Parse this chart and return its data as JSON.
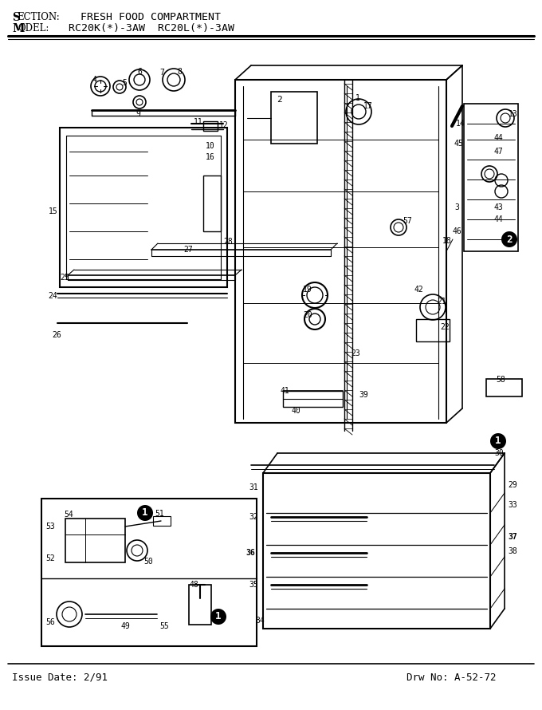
{
  "title_line1": "Section:  Fresh Food Compartment",
  "title_line2": "Model:   RC20K(*)-3AW  RC20L(*)-3AW",
  "title_section": "SECTION:  FRESH FOOD COMPARTMENT",
  "title_model": "MODEL:   RC20K(*)-3AW  RC20L(*)-3AW",
  "footer_left": "Issue Date: 2/91",
  "footer_right": "Drw No: A-52-72",
  "bg_color": "#ffffff",
  "line_color": "#000000",
  "fig_width": 6.8,
  "fig_height": 8.9,
  "dpi": 100
}
